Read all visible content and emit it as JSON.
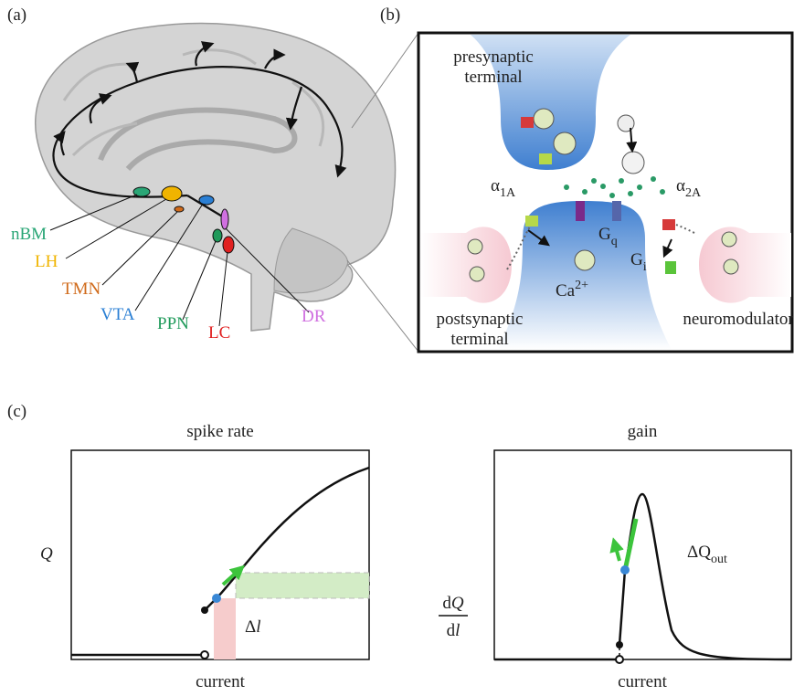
{
  "panel_a": {
    "label": "(a)",
    "regions": [
      {
        "name": "nBM",
        "color": "#2aa676"
      },
      {
        "name": "LH",
        "color": "#f0b400"
      },
      {
        "name": "TMN",
        "color": "#d06a1a"
      },
      {
        "name": "VTA",
        "color": "#2a7fd4"
      },
      {
        "name": "PPN",
        "color": "#1f9a5a"
      },
      {
        "name": "LC",
        "color": "#e02020"
      },
      {
        "name": "DR",
        "color": "#d070e0"
      }
    ]
  },
  "panel_b": {
    "label": "(b)",
    "presynaptic": [
      "presynaptic",
      "terminal"
    ],
    "postsynaptic": [
      "postsynaptic",
      "terminal"
    ],
    "neuromodulator": "neuromodulator",
    "alpha_1a": {
      "base": "α",
      "sub": "1A"
    },
    "alpha_2a": {
      "base": "α",
      "sub": "2A"
    },
    "g_q": {
      "base": "G",
      "sub": "q"
    },
    "g_i": {
      "base": "G",
      "sub": "i"
    },
    "calcium": {
      "base": "Ca",
      "sup": "2+"
    }
  },
  "panel_c": {
    "label": "(c)",
    "left": {
      "title": "spike rate",
      "y_label": "Q",
      "x_label": "current",
      "delta": {
        "base": "Δ",
        "var": "l"
      }
    },
    "right": {
      "title": "gain",
      "y_label": {
        "num": [
          "d",
          "Q"
        ],
        "den": [
          "d",
          "l"
        ]
      },
      "x_label": "current",
      "delta": {
        "base": "ΔQ",
        "sub": "out"
      }
    }
  }
}
